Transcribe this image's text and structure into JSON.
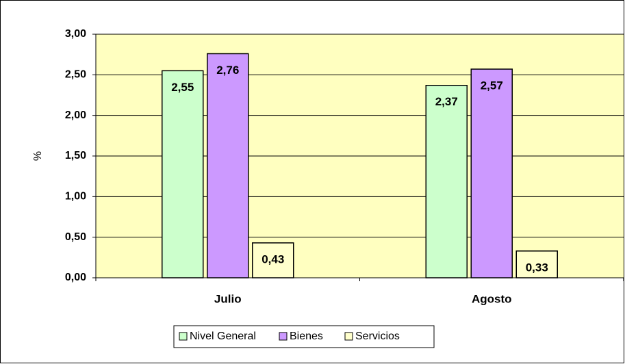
{
  "chart_data": {
    "type": "bar",
    "y_label": "%",
    "categories": [
      "Julio",
      "Agosto"
    ],
    "series": [
      {
        "name": "Nivel General",
        "color": "#ccffcc",
        "values": [
          2.55,
          2.37
        ],
        "value_labels": [
          "2,55",
          "2,37"
        ]
      },
      {
        "name": "Bienes",
        "color": "#cc99ff",
        "values": [
          2.76,
          2.57
        ],
        "value_labels": [
          "2,76",
          "2,57"
        ]
      },
      {
        "name": "Servicios",
        "color": "#ffffcc",
        "values": [
          0.43,
          0.33
        ],
        "value_labels": [
          "0,43",
          "0,33"
        ]
      }
    ],
    "ylim": [
      0,
      3
    ],
    "yticks": [
      {
        "value": 0,
        "label": "0,00"
      },
      {
        "value": 0.5,
        "label": "0,50"
      },
      {
        "value": 1,
        "label": "1,00"
      },
      {
        "value": 1.5,
        "label": "1,50"
      },
      {
        "value": 2,
        "label": "2,00"
      },
      {
        "value": 2.5,
        "label": "2,50"
      },
      {
        "value": 3,
        "label": "3,00"
      }
    ],
    "grid": true,
    "plot_background": "#ffffc0",
    "legend": "bottom"
  }
}
